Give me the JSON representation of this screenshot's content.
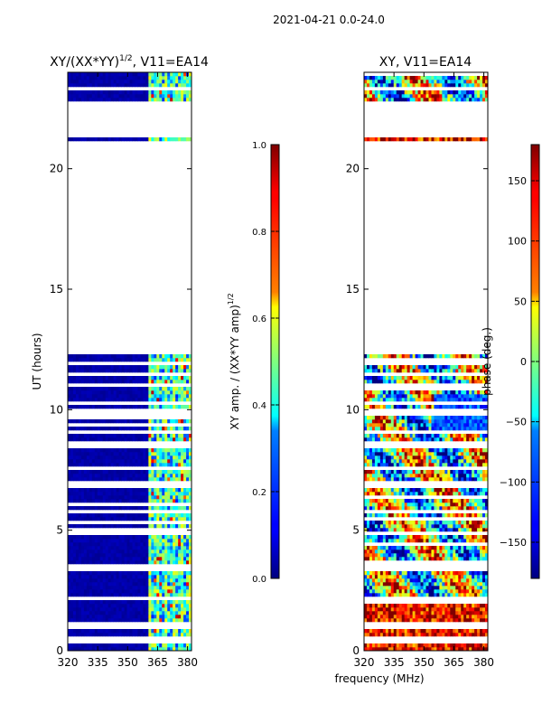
{
  "figure": {
    "suptitle": "2021-04-21 0.0-24.0",
    "shared_xlabel": "frequency (MHz)"
  },
  "chart_data": [
    {
      "type": "heatmap",
      "id": "amp_ratio",
      "title": "XY/(XX*YY)^(1/2), V11=EA14",
      "title_parts": {
        "main": "XY/(XX*YY)",
        "sup": "1/2",
        "rest": ", V11=EA14"
      },
      "xlabel": "",
      "ylabel": "UT (hours)",
      "xlim": [
        320,
        382
      ],
      "ylim": [
        0,
        24
      ],
      "xticks": [
        320,
        335,
        350,
        365,
        380
      ],
      "yticks": [
        0,
        5,
        10,
        15,
        20
      ],
      "colorbar": {
        "label": "XY amp. / (XX*YY amp)^(1/2)",
        "label_parts": {
          "main": "XY amp. / (XX*YY amp)",
          "sup": "1/2"
        },
        "range": [
          0.0,
          1.0
        ],
        "ticks": [
          "0.0",
          "0.2",
          "0.4",
          "0.6",
          "0.8",
          "1.0"
        ],
        "tick_values": [
          0.0,
          0.2,
          0.4,
          0.6,
          0.8,
          1.0
        ],
        "colormap": "jet"
      },
      "data_rows_hours": [
        [
          0.0,
          12.3
        ],
        [
          21.2,
          21.8
        ],
        [
          22.5,
          24.0
        ]
      ],
      "bright_band_mhz": [
        360,
        382
      ],
      "background_value": 0.02
    },
    {
      "type": "heatmap",
      "id": "phase",
      "title": "XY, V11=EA14",
      "xlabel": "frequency (MHz)",
      "ylabel": "",
      "xlim": [
        320,
        382
      ],
      "ylim": [
        0,
        24
      ],
      "xticks": [
        320,
        335,
        350,
        365,
        380
      ],
      "yticks": [
        0,
        5,
        10,
        15,
        20
      ],
      "colorbar": {
        "label": "phase (deg.)",
        "range": [
          -180,
          180
        ],
        "ticks": [
          "−150",
          "−100",
          "−50",
          "0",
          "50",
          "100",
          "150"
        ],
        "tick_values": [
          -150,
          -100,
          -50,
          0,
          50,
          100,
          150
        ],
        "colormap": "jet"
      },
      "data_rows_hours": [
        [
          0.0,
          12.3
        ],
        [
          21.2,
          21.8
        ],
        [
          22.5,
          24.0
        ]
      ]
    }
  ]
}
